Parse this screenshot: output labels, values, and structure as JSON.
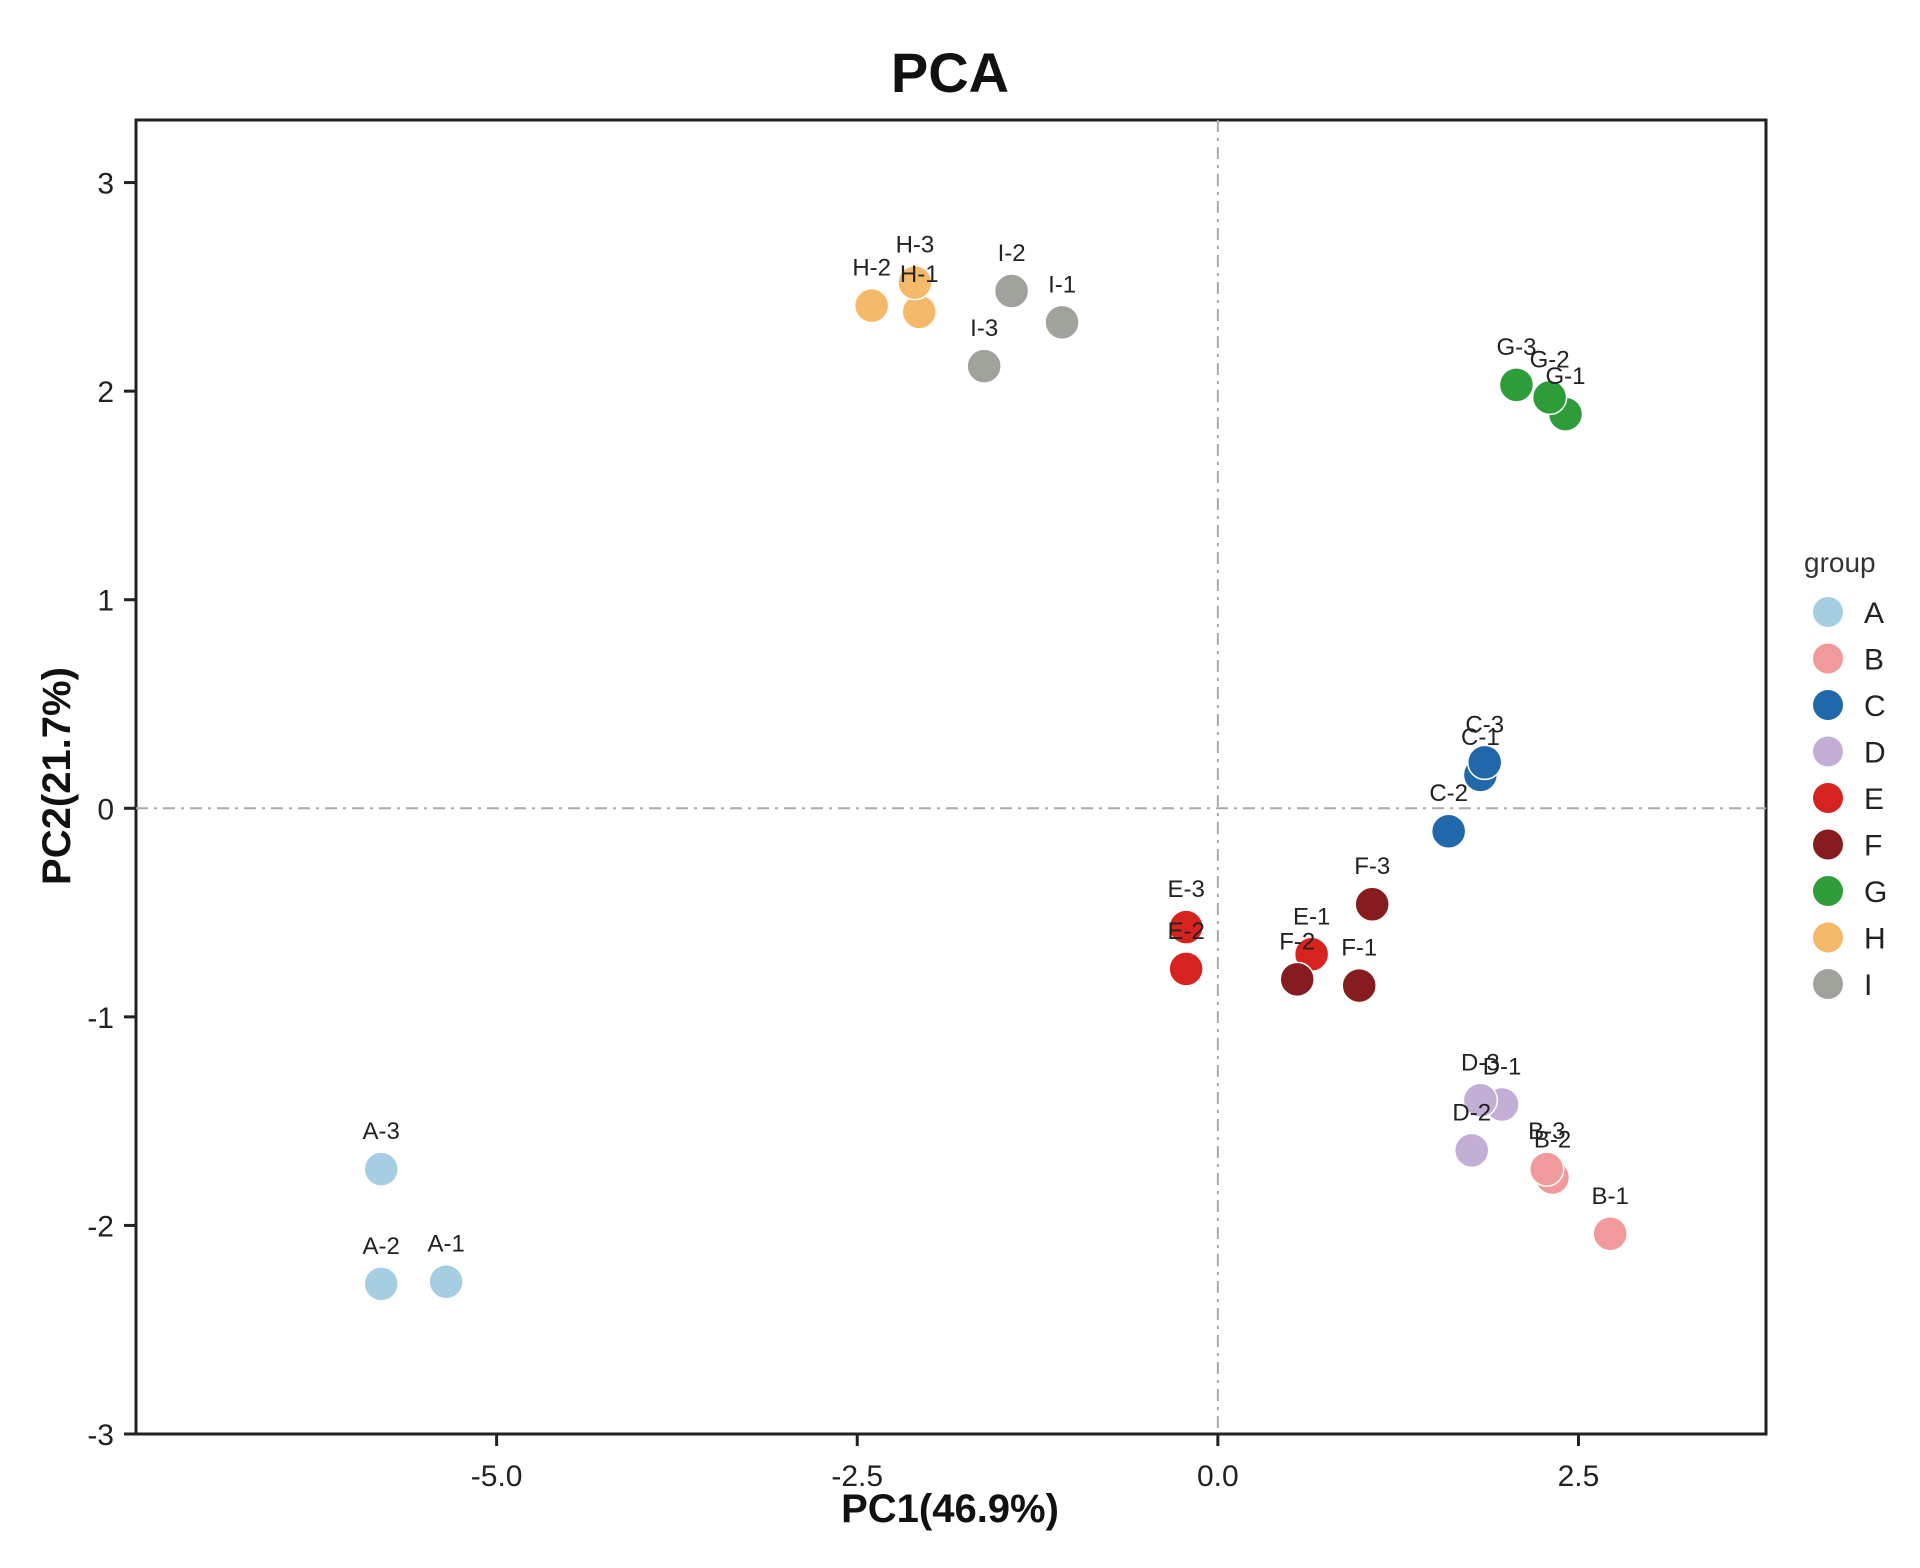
{
  "chart_data": {
    "type": "scatter",
    "title": "PCA",
    "xlabel": "PC1(46.9%)",
    "ylabel": "PC2(21.7%)",
    "xlim": [
      -7.5,
      3.8
    ],
    "ylim": [
      -3.0,
      3.3
    ],
    "xticks": [
      -5.0,
      -2.5,
      0.0,
      2.5
    ],
    "xtick_labels": [
      "-5.0",
      "-2.5",
      "0.0",
      "2.5"
    ],
    "yticks": [
      -3,
      -2,
      -1,
      0,
      1,
      2,
      3
    ],
    "ytick_labels": [
      "-3",
      "-2",
      "-1",
      "0",
      "1",
      "2",
      "3"
    ],
    "grid": false,
    "reference_lines": {
      "x": 0,
      "y": 0,
      "style": "dash-dot"
    },
    "legend": {
      "title": "group",
      "placement": "right",
      "entries": [
        {
          "label": "A",
          "color": "#a6cee3"
        },
        {
          "label": "B",
          "color": "#f19a9b"
        },
        {
          "label": "C",
          "color": "#2068a9"
        },
        {
          "label": "D",
          "color": "#c3aed6"
        },
        {
          "label": "E",
          "color": "#d7231f"
        },
        {
          "label": "F",
          "color": "#861c20"
        },
        {
          "label": "G",
          "color": "#2f9c3a"
        },
        {
          "label": "H",
          "color": "#f5b96a"
        },
        {
          "label": "I",
          "color": "#a0a29c"
        }
      ]
    },
    "points": [
      {
        "group": "A",
        "label": "A-1",
        "x": -5.35,
        "y": -2.27
      },
      {
        "group": "A",
        "label": "A-2",
        "x": -5.8,
        "y": -2.28
      },
      {
        "group": "A",
        "label": "A-3",
        "x": -5.8,
        "y": -1.73
      },
      {
        "group": "B",
        "label": "B-1",
        "x": 2.72,
        "y": -2.04
      },
      {
        "group": "B",
        "label": "B-2",
        "x": 2.32,
        "y": -1.77
      },
      {
        "group": "B",
        "label": "B-3",
        "x": 2.28,
        "y": -1.73
      },
      {
        "group": "C",
        "label": "C-1",
        "x": 1.82,
        "y": 0.16
      },
      {
        "group": "C",
        "label": "C-2",
        "x": 1.6,
        "y": -0.11
      },
      {
        "group": "C",
        "label": "C-3",
        "x": 1.85,
        "y": 0.22
      },
      {
        "group": "D",
        "label": "D-1",
        "x": 1.97,
        "y": -1.42
      },
      {
        "group": "D",
        "label": "D-2",
        "x": 1.76,
        "y": -1.64
      },
      {
        "group": "D",
        "label": "D-3",
        "x": 1.82,
        "y": -1.4
      },
      {
        "group": "E",
        "label": "E-1",
        "x": 0.65,
        "y": -0.7
      },
      {
        "group": "E",
        "label": "E-2",
        "x": -0.22,
        "y": -0.77
      },
      {
        "group": "E",
        "label": "E-3",
        "x": -0.22,
        "y": -0.57
      },
      {
        "group": "F",
        "label": "F-1",
        "x": 0.98,
        "y": -0.85
      },
      {
        "group": "F",
        "label": "F-2",
        "x": 0.55,
        "y": -0.82
      },
      {
        "group": "F",
        "label": "F-3",
        "x": 1.07,
        "y": -0.46
      },
      {
        "group": "G",
        "label": "G-1",
        "x": 2.41,
        "y": 1.89
      },
      {
        "group": "G",
        "label": "G-2",
        "x": 2.3,
        "y": 1.97
      },
      {
        "group": "G",
        "label": "G-3",
        "x": 2.07,
        "y": 2.03
      },
      {
        "group": "H",
        "label": "H-1",
        "x": -2.07,
        "y": 2.38
      },
      {
        "group": "H",
        "label": "H-2",
        "x": -2.4,
        "y": 2.41
      },
      {
        "group": "H",
        "label": "H-3",
        "x": -2.1,
        "y": 2.52
      },
      {
        "group": "I",
        "label": "I-1",
        "x": -1.08,
        "y": 2.33
      },
      {
        "group": "I",
        "label": "I-2",
        "x": -1.43,
        "y": 2.48
      },
      {
        "group": "I",
        "label": "I-3",
        "x": -1.62,
        "y": 2.12
      }
    ]
  }
}
